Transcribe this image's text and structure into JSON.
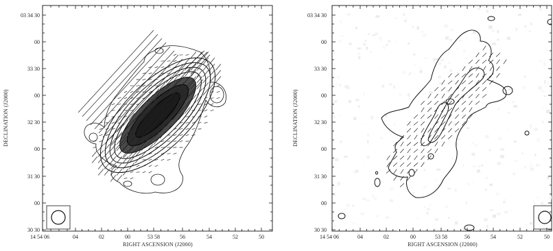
{
  "chart_data": [
    {
      "type": "contour",
      "xlabel": "RIGHT ASCENSION (J2000)",
      "ylabel": "DECLINATION (J2000)",
      "x_ticks": [
        "14 54 06",
        "04",
        "02",
        "00",
        "53 58",
        "56",
        "54",
        "52",
        "50"
      ],
      "y_ticks": [
        "03 34 30",
        "00",
        "33 30",
        "00",
        "32 30",
        "00",
        "31 30",
        "00",
        "30 30"
      ],
      "beam": "circle"
    },
    {
      "type": "contour",
      "xlabel": "RIGHT ASCENSION (J2000)",
      "ylabel": "DECLINATION (J2000)",
      "x_ticks": [
        "14 54 06",
        "04",
        "02",
        "00",
        "53 58",
        "56",
        "54",
        "52",
        "50"
      ],
      "y_ticks": [
        "03 34 30",
        "00",
        "33 30",
        "00",
        "32 30",
        "00",
        "31 30",
        "00",
        "30 30"
      ],
      "beam": "circle"
    }
  ]
}
